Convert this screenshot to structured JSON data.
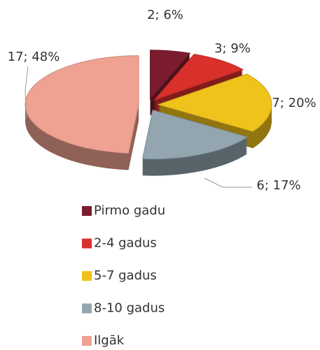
{
  "chart_data": {
    "type": "pie",
    "categories": [
      "Pirmo gadu",
      "2-4 gadus",
      "5-7 gadus",
      "8-10 gadus",
      "Ilgāk"
    ],
    "values": [
      2,
      3,
      7,
      6,
      17
    ],
    "value_labels": [
      "2; 6%",
      "3; 9%",
      "7; 20%",
      "6; 17%",
      "17; 48%"
    ],
    "colors": [
      "#7b1c2e",
      "#d9302c",
      "#f0c31c",
      "#93a6b0",
      "#efa291"
    ],
    "legend": "bottom"
  }
}
